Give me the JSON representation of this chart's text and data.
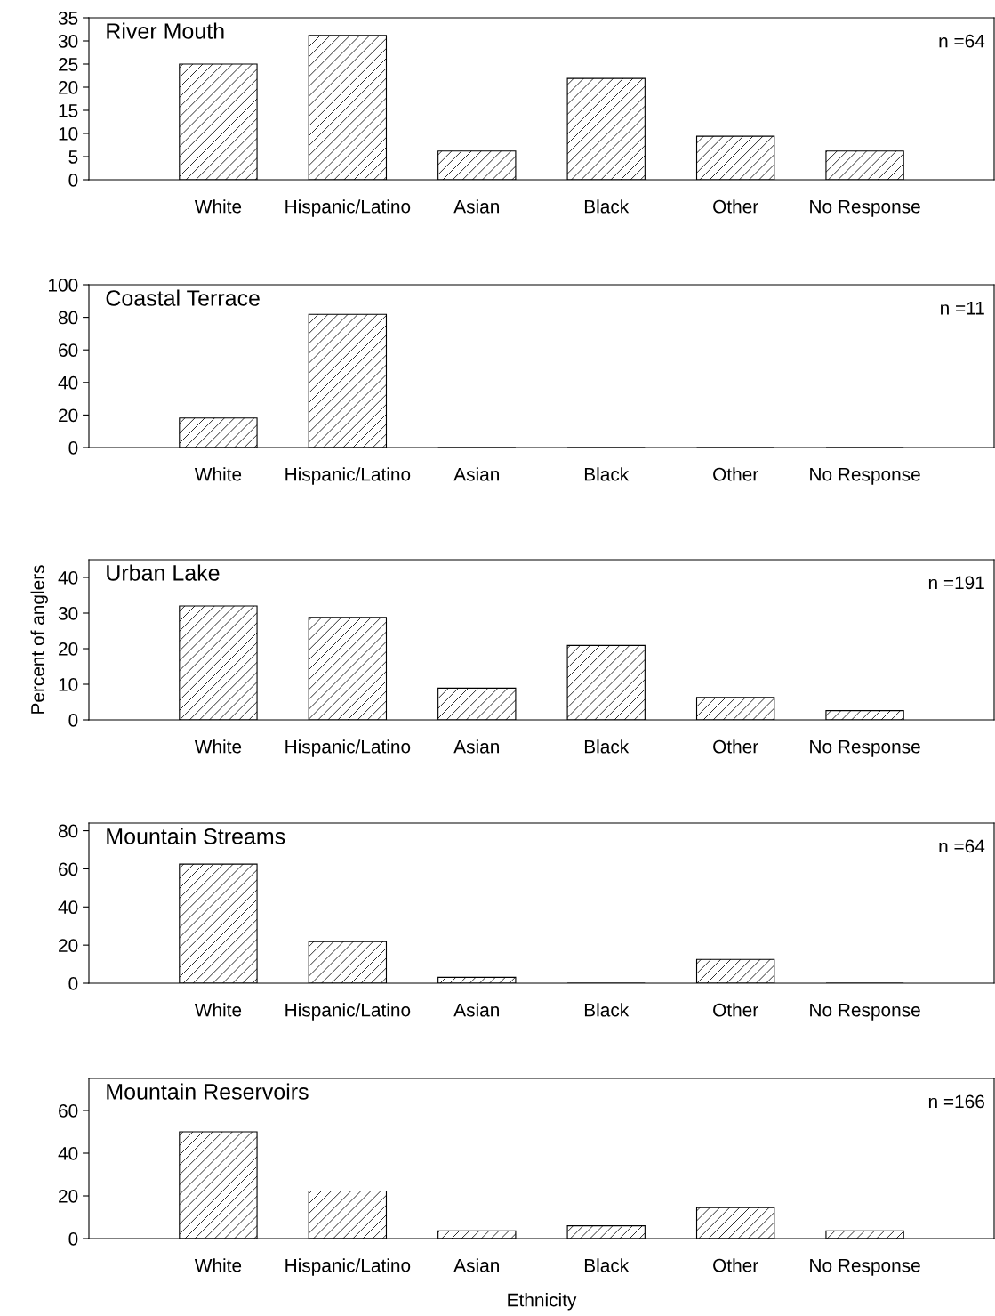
{
  "chart_data": [
    {
      "type": "bar",
      "title": "River Mouth",
      "categories": [
        "White",
        "Hispanic/Latino",
        "Asian",
        "Black",
        "Other",
        "No Response"
      ],
      "values": [
        25,
        31.2,
        6.2,
        21.9,
        9.4,
        6.2
      ],
      "color": "#000000",
      "ylim": [
        0,
        35
      ],
      "yticks": [
        0,
        5,
        10,
        15,
        20,
        25,
        30,
        35
      ],
      "annotations": [
        "n =64"
      ],
      "grid": false,
      "legend": false
    },
    {
      "type": "bar",
      "title": "Coastal Terrace",
      "categories": [
        "White",
        "Hispanic/Latino",
        "Asian",
        "Black",
        "Other",
        "No Response"
      ],
      "values": [
        18.2,
        81.8,
        0,
        0,
        0,
        0
      ],
      "color": "#000000",
      "ylim": [
        0,
        100
      ],
      "yticks": [
        0,
        20,
        40,
        60,
        80,
        100
      ],
      "annotations": [
        "n =11"
      ],
      "grid": false,
      "legend": false
    },
    {
      "type": "bar",
      "title": "Urban Lake",
      "ylabel": "Percent of anglers",
      "categories": [
        "White",
        "Hispanic/Latino",
        "Asian",
        "Black",
        "Other",
        "No Response"
      ],
      "values": [
        32,
        28.8,
        8.9,
        20.9,
        6.3,
        2.6
      ],
      "color": "#000000",
      "ylim": [
        0,
        45
      ],
      "yticks": [
        0,
        10,
        20,
        30,
        40
      ],
      "annotations": [
        "n =191"
      ],
      "grid": false,
      "legend": false
    },
    {
      "type": "bar",
      "title": "Mountain Streams",
      "categories": [
        "White",
        "Hispanic/Latino",
        "Asian",
        "Black",
        "Other",
        "No Response"
      ],
      "values": [
        62.5,
        21.9,
        3.1,
        0,
        12.5,
        0
      ],
      "color": "#000000",
      "ylim": [
        0,
        84
      ],
      "yticks": [
        0,
        20,
        40,
        60,
        80
      ],
      "annotations": [
        "n =64"
      ],
      "grid": false,
      "legend": false
    },
    {
      "type": "bar",
      "title": "Mountain Reservoirs",
      "xlabel": "Ethnicity",
      "categories": [
        "White",
        "Hispanic/Latino",
        "Asian",
        "Black",
        "Other",
        "No Response"
      ],
      "values": [
        50,
        22.3,
        3.6,
        6.0,
        14.5,
        3.6
      ],
      "color": "#000000",
      "ylim": [
        0,
        75
      ],
      "yticks": [
        0,
        20,
        40,
        60
      ],
      "annotations": [
        "n =166"
      ],
      "grid": false,
      "legend": false
    }
  ]
}
